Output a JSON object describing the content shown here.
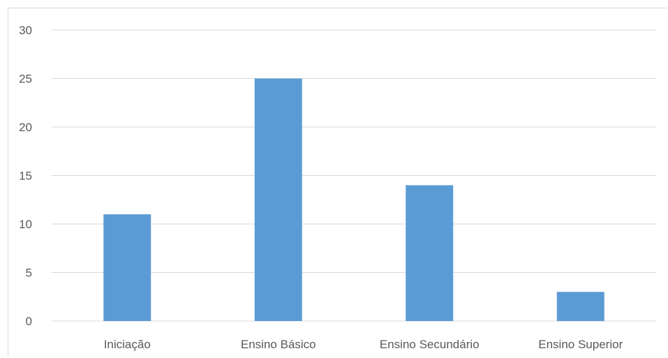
{
  "chart_data": {
    "type": "bar",
    "categories": [
      "Iniciação",
      "Ensino Básico",
      "Ensino Secundário",
      "Ensino Superior"
    ],
    "values": [
      11,
      25,
      14,
      3
    ],
    "title": "",
    "xlabel": "",
    "ylabel": "",
    "ylim": [
      0,
      30
    ],
    "yticks": [
      0,
      5,
      10,
      15,
      20,
      25,
      30
    ],
    "grid": true,
    "legend": "none",
    "bar_color": "#5b9bd5",
    "grid_color": "#d9d9d9",
    "label_color": "#595959"
  }
}
